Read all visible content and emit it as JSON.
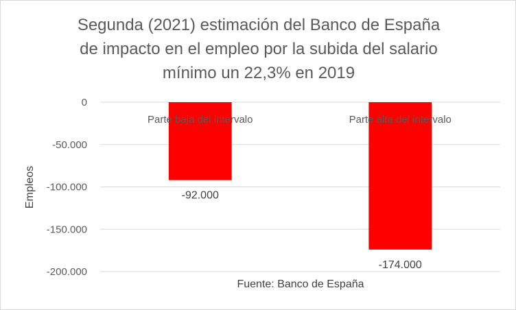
{
  "chart_data": {
    "type": "bar",
    "title_lines": [
      "Segunda (2021) estimación del Banco de España",
      "de impacto en el empleo por la subida del salario",
      "mínimo un 22,3% en 2019"
    ],
    "categories": [
      "Parte baja del intervalo",
      "Parte alta del intervalo"
    ],
    "values": [
      -92000,
      -174000
    ],
    "data_labels": [
      "-92.000",
      "-174.000"
    ],
    "ylabel": "Empleos",
    "ylim": [
      -200000,
      0
    ],
    "yticks": [
      0,
      -50000,
      -100000,
      -150000,
      -200000
    ],
    "ytick_labels": [
      "0",
      "-50.000",
      "-100.000",
      "-150.000",
      "-200.000"
    ],
    "grid": true,
    "legend": "none",
    "bar_color": "#ff0000",
    "note": "Fuente: Banco de España"
  }
}
